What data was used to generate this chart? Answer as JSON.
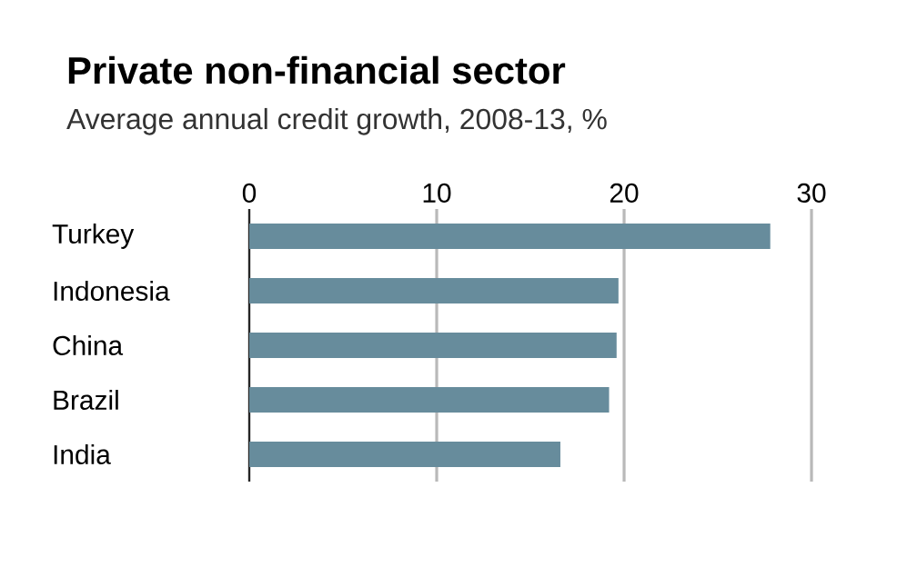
{
  "chart_data": {
    "type": "bar",
    "orientation": "horizontal",
    "title": "Private non-financial sector",
    "subtitle": "Average annual credit growth, 2008-13, %",
    "categories": [
      "Turkey",
      "Indonesia",
      "China",
      "Brazil",
      "India"
    ],
    "values": [
      27.8,
      19.7,
      19.6,
      19.2,
      16.6
    ],
    "color": "#678c9c",
    "xlim": [
      0,
      30
    ],
    "xticks": [
      0,
      10,
      20,
      30
    ],
    "grid": "x"
  }
}
